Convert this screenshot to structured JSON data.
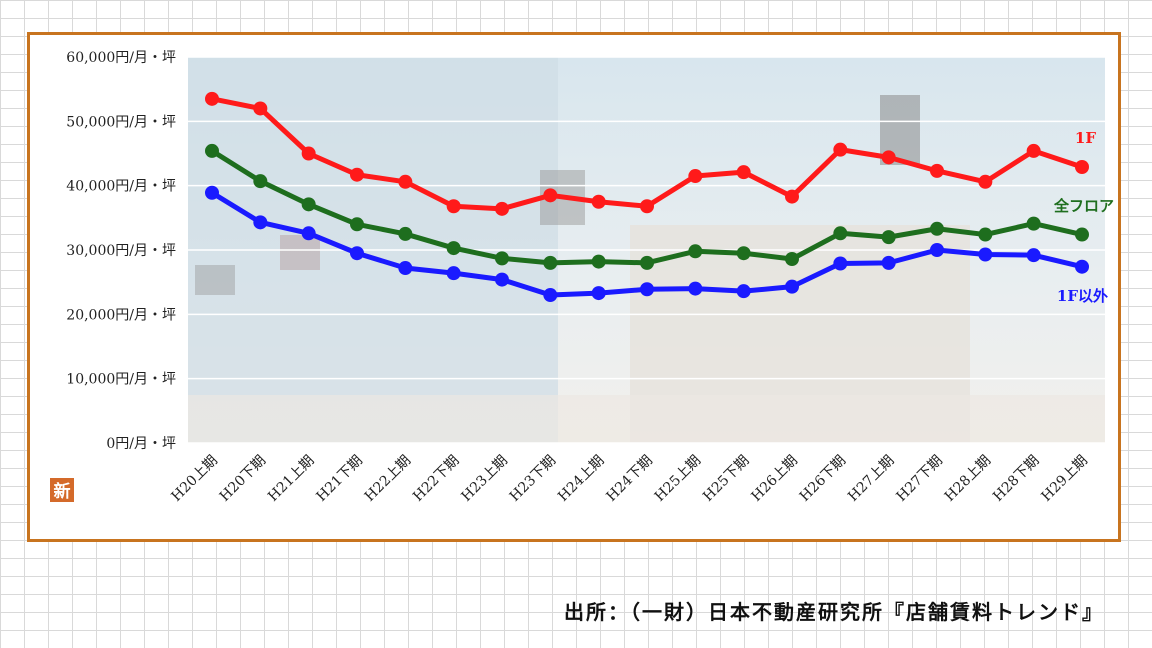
{
  "source": "出所：（一財）日本不動産研究所『店舗賃料トレンド』",
  "badge": "新",
  "colors": {
    "frame": "#c8741f",
    "badge": "#d46a2a"
  },
  "chart_data": {
    "type": "line",
    "categories": [
      "H20上期",
      "H20下期",
      "H21上期",
      "H21下期",
      "H22上期",
      "H22下期",
      "H23上期",
      "H23下期",
      "H24上期",
      "H24下期",
      "H25上期",
      "H25下期",
      "H26上期",
      "H26下期",
      "H27上期",
      "H27下期",
      "H28上期",
      "H28下期",
      "H29上期"
    ],
    "y_ticks": [
      "0円/月・坪",
      "10,000円/月・坪",
      "20,000円/月・坪",
      "30,000円/月・坪",
      "40,000円/月・坪",
      "50,000円/月・坪",
      "60,000円/月・坪"
    ],
    "ylim": [
      0,
      60000
    ],
    "grid": true,
    "series": [
      {
        "name": "1F",
        "color": "#ff1a1a",
        "values": [
          53500,
          52000,
          45000,
          41700,
          40600,
          36800,
          36400,
          38500,
          37500,
          36800,
          41500,
          42100,
          38300,
          45600,
          44400,
          42300,
          40600,
          45400,
          42900
        ]
      },
      {
        "name": "全フロア",
        "color": "#1e6e1e",
        "values": [
          45400,
          40700,
          37100,
          34000,
          32500,
          30300,
          28700,
          28000,
          28200,
          28000,
          29800,
          29500,
          28600,
          32600,
          32000,
          33300,
          32400,
          34100,
          32400
        ]
      },
      {
        "name": "1F以外",
        "color": "#1a1aff",
        "values": [
          38900,
          34300,
          32600,
          29500,
          27200,
          26400,
          25400,
          23000,
          23300,
          23900,
          24000,
          23600,
          24300,
          27900,
          28000,
          30000,
          29300,
          29200,
          27400
        ]
      }
    ]
  }
}
